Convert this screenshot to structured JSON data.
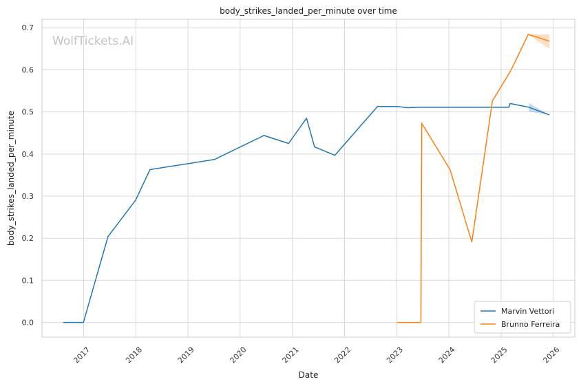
{
  "chart_data": {
    "type": "line",
    "title": "body_strikes_landed_per_minute over time",
    "xlabel": "Date",
    "ylabel": "body_strikes_landed_per_minute",
    "watermark": "WolfTickets.AI",
    "xlim": [
      "2016-03-15",
      "2026-06-01"
    ],
    "ylim": [
      -0.035,
      0.72
    ],
    "x_ticks": [
      "2017-01-01",
      "2018-01-01",
      "2019-01-01",
      "2020-01-01",
      "2021-01-01",
      "2022-01-01",
      "2023-01-01",
      "2024-01-01",
      "2025-01-01",
      "2026-01-01"
    ],
    "x_tick_labels": [
      "2017",
      "2018",
      "2019",
      "2020",
      "2021",
      "2022",
      "2023",
      "2024",
      "2025",
      "2026"
    ],
    "y_ticks": [
      0.0,
      0.1,
      0.2,
      0.3,
      0.4,
      0.5,
      0.6,
      0.7
    ],
    "y_tick_labels": [
      "0.0",
      "0.1",
      "0.2",
      "0.3",
      "0.4",
      "0.5",
      "0.6",
      "0.7"
    ],
    "grid": true,
    "legend_position": "bottom-right",
    "series": [
      {
        "name": "Marvin Vettori",
        "color": "#1f77b4",
        "points": [
          [
            "2016-08-10",
            0.0
          ],
          [
            "2016-12-30",
            0.0
          ],
          [
            "2017-06-20",
            0.204
          ],
          [
            "2017-12-30",
            0.29
          ],
          [
            "2018-04-10",
            0.363
          ],
          [
            "2019-07-05",
            0.387
          ],
          [
            "2020-06-15",
            0.444
          ],
          [
            "2020-12-05",
            0.425
          ],
          [
            "2021-04-10",
            0.485
          ],
          [
            "2021-06-05",
            0.417
          ],
          [
            "2021-10-25",
            0.397
          ],
          [
            "2022-08-20",
            0.513
          ],
          [
            "2023-01-05",
            0.513
          ],
          [
            "2023-03-15",
            0.51
          ],
          [
            "2023-06-15",
            0.511
          ],
          [
            "2025-02-25",
            0.511
          ],
          [
            "2025-03-05",
            0.52
          ],
          [
            "2025-07-15",
            0.511
          ],
          [
            "2025-12-05",
            0.493
          ]
        ],
        "band": [
          [
            "2025-07-15",
            0.501,
            0.521
          ],
          [
            "2025-12-05",
            0.493,
            0.493
          ]
        ]
      },
      {
        "name": "Brunno Ferreira",
        "color": "#ff7f0e",
        "points": [
          [
            "2023-01-05",
            0.0
          ],
          [
            "2023-06-20",
            0.0
          ],
          [
            "2023-06-25",
            0.473
          ],
          [
            "2024-01-10",
            0.363
          ],
          [
            "2024-06-10",
            0.191
          ],
          [
            "2024-11-01",
            0.526
          ],
          [
            "2025-03-01",
            0.593
          ],
          [
            "2025-03-10",
            0.598
          ],
          [
            "2025-07-10",
            0.684
          ],
          [
            "2025-12-05",
            0.668
          ]
        ],
        "band": [
          [
            "2025-07-10",
            0.684,
            0.684
          ],
          [
            "2025-10-01",
            0.664,
            0.684
          ],
          [
            "2025-12-05",
            0.65,
            0.684
          ]
        ]
      }
    ]
  }
}
